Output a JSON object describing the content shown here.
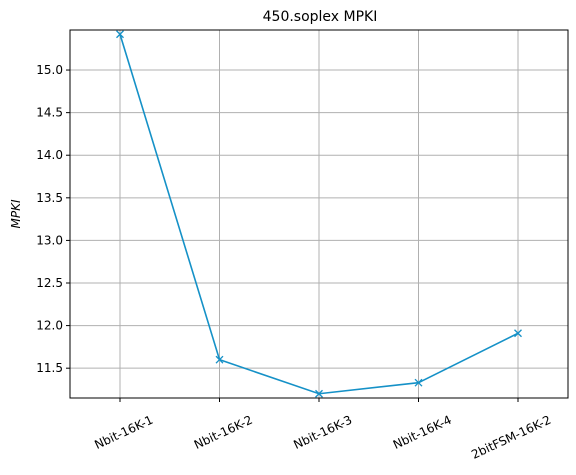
{
  "chart_data": {
    "type": "line",
    "title": "450.soplex MPKI",
    "xlabel": "",
    "ylabel": "MPKI",
    "categories": [
      "Nbit-16K-1",
      "Nbit-16K-2",
      "Nbit-16K-3",
      "Nbit-16K-4",
      "2bitFSM-16K-2"
    ],
    "series": [
      {
        "values": [
          15.42,
          11.6,
          11.2,
          11.33,
          11.91
        ]
      }
    ],
    "ylim": [
      11.15,
      15.47
    ],
    "yticks": [
      "11.5",
      "12.0",
      "12.5",
      "13.0",
      "13.5",
      "14.0",
      "14.5",
      "15.0"
    ],
    "grid": true,
    "marker": "x",
    "colors": {
      "line": "#1591c7",
      "grid": "#b0b0b0"
    }
  }
}
